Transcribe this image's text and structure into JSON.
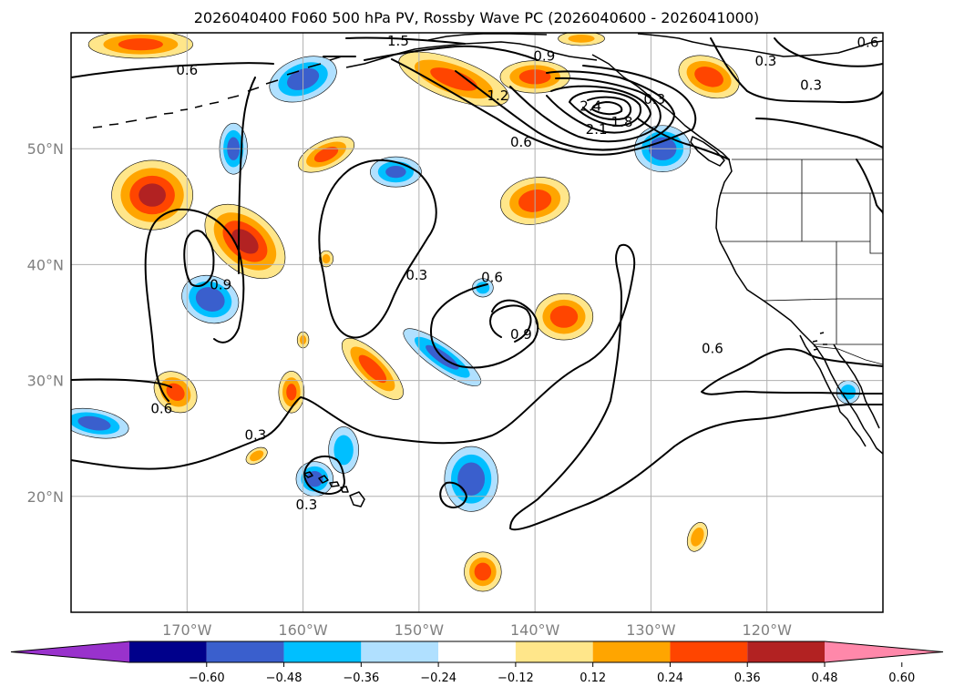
{
  "chart_data": {
    "type": "heatmap",
    "title": "2026040400 F060 500 hPa PV, Rossby Wave PC (2026040600 - 2026041000)",
    "projection": "plate-carree",
    "lon_range": [
      -180,
      -110
    ],
    "lat_range": [
      10,
      60
    ],
    "lat_ticks": [
      {
        "value": 20,
        "label": "20°N"
      },
      {
        "value": 30,
        "label": "30°N"
      },
      {
        "value": 40,
        "label": "40°N"
      },
      {
        "value": 50,
        "label": "50°N"
      }
    ],
    "lon_ticks": [
      {
        "value": -170,
        "label": "170°W"
      },
      {
        "value": -160,
        "label": "160°W"
      },
      {
        "value": -150,
        "label": "150°W"
      },
      {
        "value": -140,
        "label": "140°W"
      },
      {
        "value": -130,
        "label": "130°W"
      },
      {
        "value": -120,
        "label": "120°W"
      }
    ],
    "grid": true,
    "colorbar": {
      "orientation": "horizontal",
      "extend": "both",
      "levels": [
        -0.6,
        -0.48,
        -0.36,
        -0.24,
        -0.12,
        0.12,
        0.24,
        0.36,
        0.48,
        0.6
      ],
      "tick_labels": [
        "−0.60",
        "−0.48",
        "−0.36",
        "−0.24",
        "−0.12",
        "0.12",
        "0.24",
        "0.36",
        "0.48",
        "0.60"
      ],
      "colors": [
        "#9932cc",
        "#00008b",
        "#3a5fcd",
        "#00bfff",
        "#b0e0ff",
        "#ffffff",
        "#ffe68a",
        "#ffa500",
        "#ff4500",
        "#b22222",
        "#ff88aa"
      ]
    },
    "pc_anomalies": [
      {
        "lon": -173,
        "lat": 46,
        "rx": 3.5,
        "ry": 3,
        "rot": 0,
        "value": 0.5
      },
      {
        "lon": -165,
        "lat": 42,
        "rx": 4,
        "ry": 2.5,
        "rot": 40,
        "value": 0.5
      },
      {
        "lon": -168,
        "lat": 37,
        "rx": 2.5,
        "ry": 2,
        "rot": 20,
        "value": -0.45
      },
      {
        "lon": -171,
        "lat": 29,
        "rx": 2,
        "ry": 1.6,
        "rot": 40,
        "value": 0.38
      },
      {
        "lon": -178,
        "lat": 26.3,
        "rx": 3,
        "ry": 1.2,
        "rot": 10,
        "value": -0.42
      },
      {
        "lon": -166,
        "lat": 50,
        "rx": 1.2,
        "ry": 2.2,
        "rot": 0,
        "value": -0.4
      },
      {
        "lon": -158,
        "lat": 49.5,
        "rx": 2.6,
        "ry": 1.2,
        "rot": -25,
        "value": 0.38
      },
      {
        "lon": -160,
        "lat": 56,
        "rx": 3,
        "ry": 1.8,
        "rot": -20,
        "value": -0.42
      },
      {
        "lon": -152,
        "lat": 48,
        "rx": 2.2,
        "ry": 1.3,
        "rot": 0,
        "value": -0.36
      },
      {
        "lon": -147,
        "lat": 56,
        "rx": 5,
        "ry": 1.7,
        "rot": 20,
        "value": 0.38
      },
      {
        "lon": -140,
        "lat": 56.2,
        "rx": 3,
        "ry": 1.4,
        "rot": 0,
        "value": 0.4
      },
      {
        "lon": -174,
        "lat": 59,
        "rx": 4.5,
        "ry": 1.2,
        "rot": 0,
        "value": 0.38
      },
      {
        "lon": -136,
        "lat": 59.5,
        "rx": 2,
        "ry": 0.6,
        "rot": 0,
        "value": 0.24
      },
      {
        "lon": -140,
        "lat": 45.5,
        "rx": 3,
        "ry": 2,
        "rot": -10,
        "value": 0.42
      },
      {
        "lon": -129,
        "lat": 50,
        "rx": 2.4,
        "ry": 2,
        "rot": 0,
        "value": -0.44
      },
      {
        "lon": -154,
        "lat": 31,
        "rx": 3.5,
        "ry": 1.3,
        "rot": 45,
        "value": 0.4
      },
      {
        "lon": -148,
        "lat": 32,
        "rx": 4,
        "ry": 1.1,
        "rot": 35,
        "value": -0.38
      },
      {
        "lon": -137.5,
        "lat": 35.5,
        "rx": 2.5,
        "ry": 2,
        "rot": 0,
        "value": 0.42
      },
      {
        "lon": -144.5,
        "lat": 38,
        "rx": 0.9,
        "ry": 0.8,
        "rot": 0,
        "value": -0.3
      },
      {
        "lon": -161,
        "lat": 29,
        "rx": 1.1,
        "ry": 1.8,
        "rot": 0,
        "value": 0.36
      },
      {
        "lon": -156.5,
        "lat": 24,
        "rx": 1.3,
        "ry": 2,
        "rot": 0,
        "value": -0.3
      },
      {
        "lon": -159,
        "lat": 21.5,
        "rx": 1.6,
        "ry": 1.5,
        "rot": 0,
        "value": -0.4
      },
      {
        "lon": -145.5,
        "lat": 21.5,
        "rx": 2.3,
        "ry": 2.8,
        "rot": 0,
        "value": -0.45
      },
      {
        "lon": -144.5,
        "lat": 13.5,
        "rx": 1.6,
        "ry": 1.7,
        "rot": 0,
        "value": 0.4
      },
      {
        "lon": -126,
        "lat": 16.5,
        "rx": 0.8,
        "ry": 1.3,
        "rot": 20,
        "value": 0.3
      },
      {
        "lon": -125,
        "lat": 56.2,
        "rx": 2.7,
        "ry": 1.7,
        "rot": 20,
        "value": 0.42
      },
      {
        "lon": -158,
        "lat": 40.5,
        "rx": 0.6,
        "ry": 0.7,
        "rot": 0,
        "value": 0.24
      },
      {
        "lon": -160,
        "lat": 33.5,
        "rx": 0.5,
        "ry": 0.7,
        "rot": 0,
        "value": 0.24
      },
      {
        "lon": -164,
        "lat": 23.5,
        "rx": 1,
        "ry": 0.6,
        "rot": -30,
        "value": 0.3
      },
      {
        "lon": -113,
        "lat": 29,
        "rx": 1,
        "ry": 1,
        "rot": 0,
        "value": -0.3
      }
    ],
    "pv_contour_labels": [
      {
        "text": "0.6",
        "lon": -170,
        "lat": 56.7
      },
      {
        "text": "1.5",
        "lon": -151.8,
        "lat": 59.2
      },
      {
        "text": "0.9",
        "lon": -139.2,
        "lat": 57.9
      },
      {
        "text": "1.2",
        "lon": -143.2,
        "lat": 54.5
      },
      {
        "text": "0.6",
        "lon": -141.2,
        "lat": 50.5
      },
      {
        "text": "2.1",
        "lon": -134.7,
        "lat": 51.6
      },
      {
        "text": "2.4",
        "lon": -135.2,
        "lat": 53.6
      },
      {
        "text": "1.8",
        "lon": -132.5,
        "lat": 52.2
      },
      {
        "text": "0.3",
        "lon": -129.7,
        "lat": 54.2
      },
      {
        "text": "0.6",
        "lon": -111.3,
        "lat": 59.1
      },
      {
        "text": "0.3",
        "lon": -120.1,
        "lat": 57.5
      },
      {
        "text": "0.3",
        "lon": -116.2,
        "lat": 55.4
      },
      {
        "text": "0.9",
        "lon": -167.1,
        "lat": 38.2
      },
      {
        "text": "0.3",
        "lon": -150.2,
        "lat": 39
      },
      {
        "text": "0.6",
        "lon": -143.7,
        "lat": 38.8
      },
      {
        "text": "0.9",
        "lon": -141.2,
        "lat": 33.9
      },
      {
        "text": "0.6",
        "lon": -172.2,
        "lat": 27.5
      },
      {
        "text": "0.3",
        "lon": -164.1,
        "lat": 25.2
      },
      {
        "text": "0.3",
        "lon": -159.7,
        "lat": 19.2
      },
      {
        "text": "0.6",
        "lon": -124.7,
        "lat": 32.7
      }
    ]
  }
}
